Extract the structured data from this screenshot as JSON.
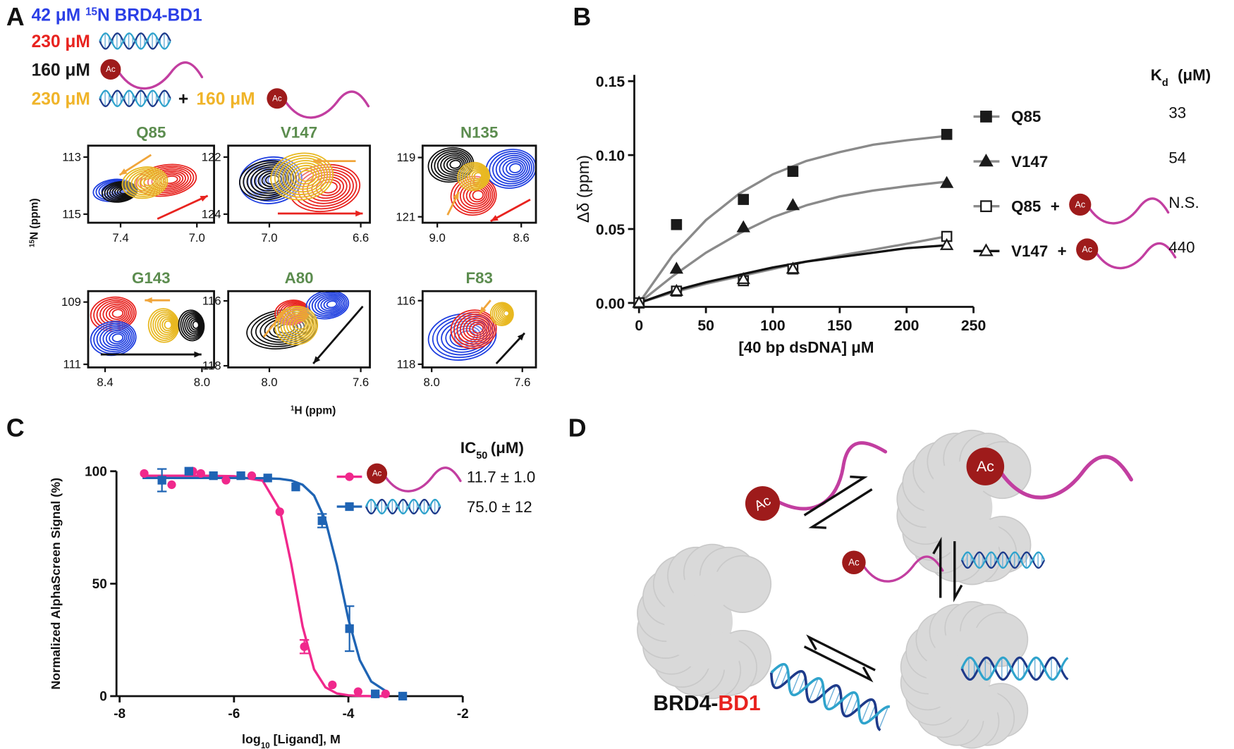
{
  "panel_labels": [
    "A",
    "B",
    "C",
    "D"
  ],
  "ac_label": "Ac",
  "panel_a": {
    "legend": [
      {
        "parts": [
          "42 μM ",
          "15",
          "N BRD4-BD1"
        ],
        "color": "#2b3fe6"
      },
      {
        "text": "230 μM",
        "color": "#e8231f",
        "icon": "dna"
      },
      {
        "text": "160 μM",
        "color": "#1a1a1a",
        "icon": "peptide"
      },
      {
        "text": "230 μM",
        "color": "#f0b429",
        "icon": "dna",
        "plus": "+",
        "text2": "160 μM",
        "icon2": "peptide"
      }
    ],
    "y_label": [
      "15",
      "N (ppm)"
    ],
    "x_label": [
      "1",
      "H (ppm)"
    ]
  },
  "chart_data": [
    {
      "type": "nmr",
      "title": "Q85",
      "title_color": "#5b8c4e",
      "xlim": [
        7.57,
        6.91
      ],
      "ylim": [
        115.3,
        112.6
      ],
      "xticks": [
        7.4,
        {
          "value": 7,
          "label": "7.0"
        }
      ],
      "yticks": [
        113,
        115
      ]
    },
    {
      "type": "nmr",
      "title": "V147",
      "title_color": "#5b8c4e",
      "xlim": [
        7.18,
        6.56
      ],
      "ylim": [
        124.3,
        121.6
      ],
      "xticks": [
        {
          "value": 7,
          "label": "7.0"
        },
        6.6
      ],
      "yticks": [
        122,
        124
      ]
    },
    {
      "type": "nmr",
      "title": "N135",
      "title_color": "#5b8c4e",
      "xlim": [
        9.07,
        8.53
      ],
      "ylim": [
        121.2,
        118.6
      ],
      "xticks": [
        {
          "value": 9,
          "label": "9.0"
        },
        8.6
      ],
      "yticks": [
        119,
        121
      ]
    },
    {
      "type": "nmr",
      "title": "G143",
      "title_color": "#5b8c4e",
      "xlim": [
        8.47,
        7.95
      ],
      "ylim": [
        111.1,
        108.65
      ],
      "xticks": [
        8.4,
        {
          "value": 8,
          "label": "8.0"
        }
      ],
      "yticks": [
        109,
        111
      ]
    },
    {
      "type": "nmr",
      "title": "A80",
      "title_color": "#5b8c4e",
      "xlim": [
        8.18,
        7.56
      ],
      "ylim": [
        118.05,
        115.7
      ],
      "xticks": [
        {
          "value": 8,
          "label": "8.0"
        },
        7.6
      ],
      "yticks": [
        116,
        118
      ]
    },
    {
      "type": "nmr",
      "title": "F83",
      "title_color": "#5b8c4e",
      "xlim": [
        8.04,
        7.54
      ],
      "ylim": [
        118.1,
        115.7
      ],
      "xticks": [
        {
          "value": 8,
          "label": "8.0"
        },
        7.6
      ],
      "yticks": [
        116,
        118
      ]
    },
    {
      "type": "scatter",
      "x_label": "[40 bp dsDNA] μM",
      "y_label": "Δδ (ppm)",
      "xlim": [
        0,
        250
      ],
      "ylim": [
        0,
        0.15
      ],
      "xticks": [
        0,
        50,
        100,
        150,
        200,
        250
      ],
      "yticks": [
        {
          "value": 0,
          "label": "0.00"
        },
        0.05,
        {
          "value": 0.1,
          "label": "0.10"
        },
        0.15
      ],
      "x": [
        0,
        28,
        78,
        115,
        230
      ],
      "fit_x": [
        0,
        25,
        50,
        75,
        100,
        125,
        150,
        175,
        200,
        230
      ],
      "kd_header": [
        "K",
        "d",
        "(μM)"
      ],
      "plus": "+",
      "series": [
        {
          "name": "Q85",
          "marker": "square",
          "filled": true,
          "color": "#1a1a1a",
          "fit_color": "#8a8a8a",
          "with_ligand": false,
          "kd": 33,
          "values": [
            0,
            0.053,
            0.07,
            0.089,
            0.114
          ],
          "fit": [
            0,
            0.032,
            0.056,
            0.074,
            0.087,
            0.096,
            0.102,
            0.107,
            0.11,
            0.113
          ]
        },
        {
          "name": "V147",
          "marker": "triangle",
          "filled": true,
          "color": "#1a1a1a",
          "fit_color": "#8a8a8a",
          "with_ligand": false,
          "kd": 54,
          "values": [
            0,
            0.023,
            0.051,
            0.066,
            0.081
          ],
          "fit": [
            0,
            0.018,
            0.034,
            0.047,
            0.058,
            0.066,
            0.072,
            0.076,
            0.079,
            0.082
          ]
        },
        {
          "name": "Q85",
          "marker": "square",
          "filled": false,
          "color": "#1a1a1a",
          "fit_color": "#8a8a8a",
          "with_ligand": true,
          "kd": "N.S.",
          "values": [
            0,
            0.008,
            0.015,
            0.023,
            0.045
          ],
          "fit": [
            0,
            0.007,
            0.013,
            0.018,
            0.023,
            0.028,
            0.032,
            0.036,
            0.04,
            0.045
          ]
        },
        {
          "name": "V147",
          "marker": "triangle",
          "filled": false,
          "color": "#1a1a1a",
          "fit_color": "#111111",
          "with_ligand": true,
          "kd": 440,
          "values": [
            0,
            0.008,
            0.016,
            0.023,
            0.039
          ],
          "fit": [
            0,
            0.008,
            0.014,
            0.019,
            0.024,
            0.028,
            0.031,
            0.034,
            0.037,
            0.039
          ]
        }
      ]
    },
    {
      "type": "dose-response",
      "x_label": [
        "log",
        "10",
        " [Ligand], M"
      ],
      "y_label": "Normalized AlphaScreen Signal (%)",
      "xlim": [
        -8,
        -2
      ],
      "ylim": [
        0,
        100
      ],
      "xticks": [
        -8,
        -6,
        -4,
        -2
      ],
      "yticks": [
        0,
        50,
        100
      ],
      "ic50_header": [
        "IC",
        "50",
        "(μM)"
      ],
      "fit_x": [
        -7.6,
        -7,
        -6.5,
        -6,
        -5.5,
        -5.2,
        -5,
        -4.8,
        -4.6,
        -4.4,
        -4.2,
        -4,
        -3.8,
        -3.6,
        -3.3
      ],
      "series": [
        {
          "icon": "peptide",
          "marker": "circle",
          "color": "#f0288c",
          "ic50": "11.7 ± 1.0",
          "x": [
            -7.57,
            -7.09,
            -6.72,
            -6.58,
            -6.14,
            -5.69,
            -5.2,
            -4.77,
            -4.28,
            -3.83,
            -3.35
          ],
          "values": [
            99,
            94,
            100,
            99,
            96,
            98,
            82,
            22,
            5,
            2,
            1
          ],
          "errors": [
            null,
            null,
            null,
            null,
            null,
            null,
            null,
            3,
            null,
            null,
            null
          ],
          "fit": [
            98,
            98,
            98,
            97.8,
            95.8,
            83,
            59,
            31,
            11.9,
            3.9,
            1.2,
            0.4,
            0.1,
            0,
            0
          ]
        },
        {
          "icon": "dna",
          "marker": "square",
          "color": "#1f64b4",
          "ic50": "75.0 ± 12",
          "x": [
            -7.26,
            -6.79,
            -6.36,
            -5.88,
            -5.41,
            -4.92,
            -4.46,
            -3.98,
            -3.53,
            -3.05
          ],
          "values": [
            96,
            100,
            98,
            98,
            97,
            93,
            78,
            30,
            1,
            0
          ],
          "errors": [
            5,
            null,
            null,
            null,
            null,
            null,
            3,
            10,
            null,
            null
          ],
          "fit": [
            97,
            97,
            97,
            97,
            96.9,
            96.6,
            95.9,
            94,
            89.2,
            78.1,
            58.2,
            34.2,
            16,
            6.5,
            1.5
          ]
        }
      ]
    }
  ],
  "diagram": {
    "name": "BRD4-",
    "domain": "BD1",
    "domain_color": "#e8231f"
  }
}
